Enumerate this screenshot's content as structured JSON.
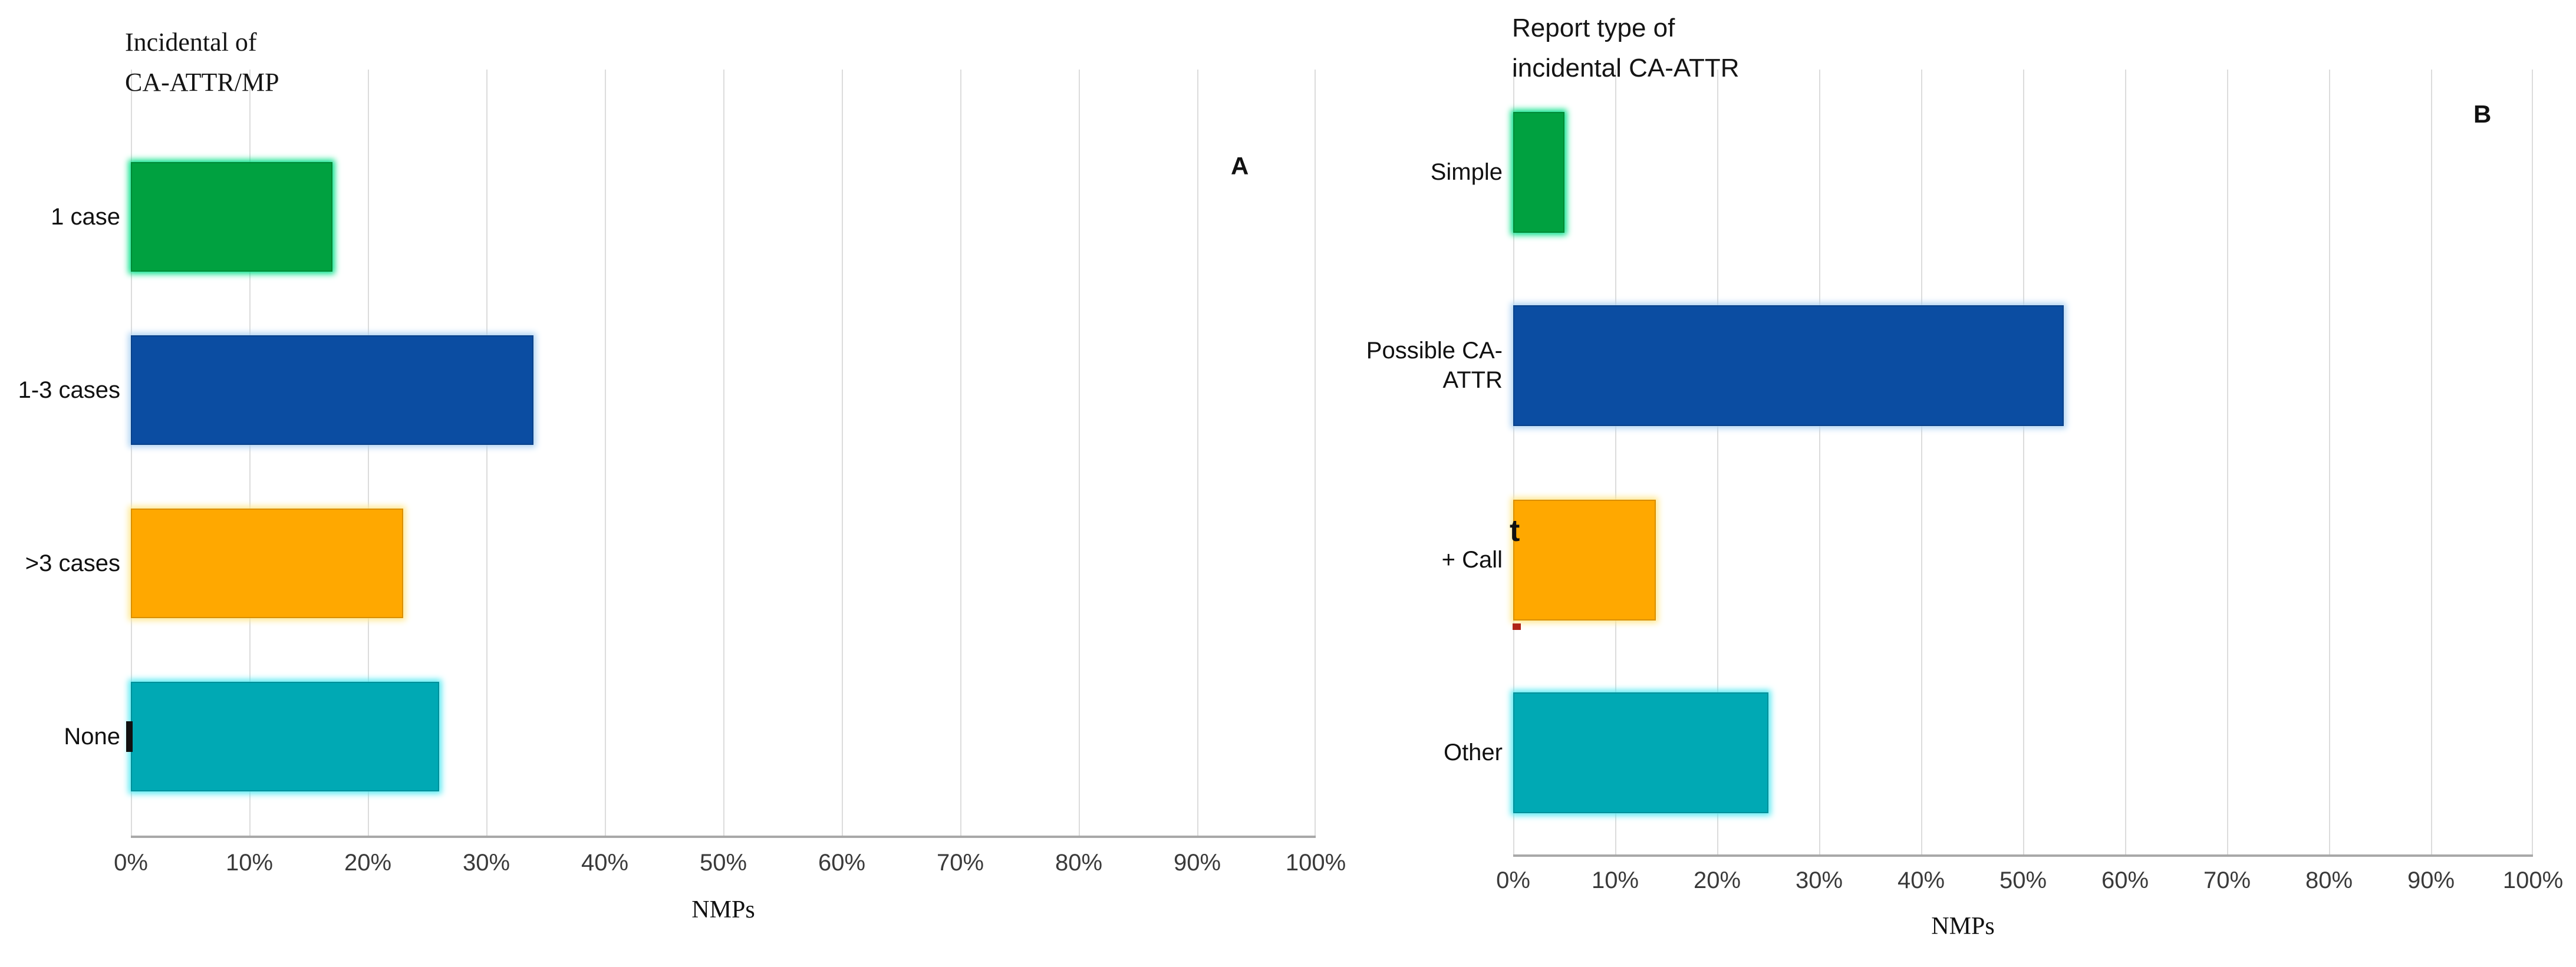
{
  "styles": {
    "background": "#FFFFFF",
    "gridline_color": "#DCDCDC",
    "axis_line_color": "#A8A8A8",
    "tick_text_color": "#3A3A3A",
    "label_text_color": "#111111"
  },
  "chart_data": [
    {
      "type": "bar",
      "orientation": "horizontal",
      "panel_label": "A",
      "title": "Incidental of\nCA-ATTR/MP",
      "xlabel": "NMPs",
      "xlim": [
        0,
        100
      ],
      "x_tick_labels": [
        "0%",
        "10%",
        "20%",
        "30%",
        "40%",
        "50%",
        "60%",
        "70%",
        "80%",
        "90%",
        "100%"
      ],
      "grid": "vertical-gridlines-every-10pct",
      "legend": "none",
      "categories": [
        "1 case",
        "1-3 cases",
        ">3 cases",
        "None"
      ],
      "values_percent": [
        17,
        34,
        23,
        26
      ],
      "bar_colors": [
        "#00A140",
        "#0B4DA2",
        "#FFA800",
        "#00A9B4"
      ],
      "bar_glow_colors": [
        "#00E187",
        "#AED3F2",
        "#FFE88F",
        "#55E9F2"
      ],
      "artifacts": [
        {
          "kind": "black-mark",
          "row_index": 3,
          "note": "small dark fragment peeking at left edge of None bar"
        }
      ]
    },
    {
      "type": "bar",
      "orientation": "horizontal",
      "panel_label": "B",
      "title": "Report type of\nincidental CA-ATTR",
      "xlabel": "NMPs",
      "xlim": [
        0,
        100
      ],
      "x_tick_labels": [
        "0%",
        "10%",
        "20%",
        "30%",
        "40%",
        "50%",
        "60%",
        "70%",
        "80%",
        "90%",
        "100%"
      ],
      "grid": "vertical-gridlines-every-10pct",
      "legend": "none",
      "categories": [
        "Simple",
        "Possible CA-\nATTR",
        "+ Call",
        "Other"
      ],
      "values_percent": [
        5,
        54,
        14,
        25
      ],
      "bar_colors": [
        "#00A140",
        "#0B4DA2",
        "#FFA800",
        "#00A9B4"
      ],
      "bar_glow_colors": [
        "#00E187",
        "#AED3F2",
        "#FFE88F",
        "#55E9F2"
      ],
      "artifacts": [
        {
          "kind": "text-frag",
          "row_index": 2,
          "text": "t",
          "note": "black letter fragment hidden behind + Call bar top-left"
        },
        {
          "kind": "red-mark",
          "row_index": 2,
          "note": "small red fragment at left edge below + Call label"
        }
      ]
    }
  ]
}
